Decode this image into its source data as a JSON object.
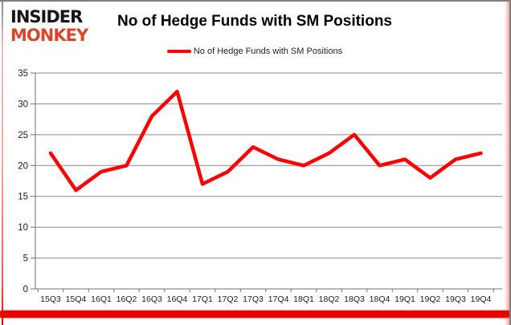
{
  "logo": {
    "line1": "INSIDER",
    "line2": "MONKEY"
  },
  "header": {
    "title": "No of Hedge Funds with SM Positions"
  },
  "legend": {
    "label": "No of Hedge Funds with SM Positions"
  },
  "chart_data": {
    "type": "line",
    "title": "No of Hedge Funds with SM Positions",
    "categories": [
      "15Q3",
      "15Q4",
      "16Q1",
      "16Q2",
      "16Q3",
      "16Q4",
      "17Q1",
      "17Q2",
      "17Q3",
      "17Q4",
      "18Q1",
      "18Q2",
      "18Q3",
      "18Q4",
      "19Q1",
      "19Q2",
      "19Q3",
      "19Q4"
    ],
    "series": [
      {
        "name": "No of Hedge Funds with SM Positions",
        "values": [
          22,
          16,
          19,
          20,
          28,
          32,
          17,
          19,
          23,
          21,
          20,
          22,
          25,
          20,
          21,
          18,
          21,
          22
        ]
      }
    ],
    "ylim": [
      0,
      35
    ],
    "ytick_step": 5,
    "grid": true,
    "legend_position": "top"
  },
  "colors": {
    "line_red": "#FE0000",
    "logo_orange": "#D9472B",
    "gridline": "#8a8a8a",
    "axis": "#707070",
    "tick_label": "#1a1a1a",
    "bottom_bar": "#ED0000"
  }
}
